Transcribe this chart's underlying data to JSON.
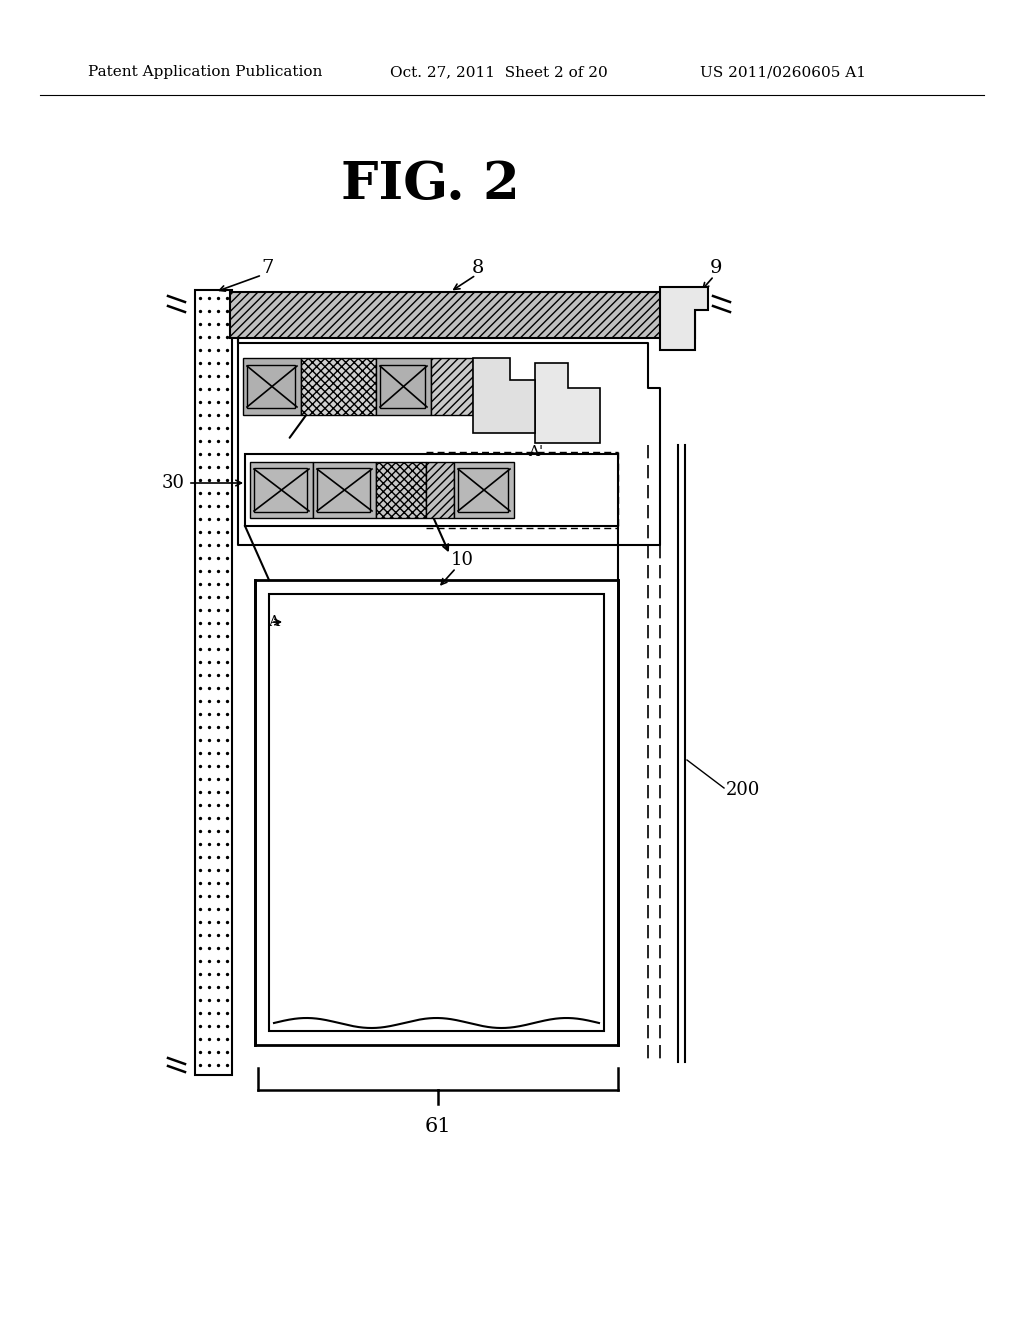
{
  "bg_color": "#ffffff",
  "title": "FIG. 2",
  "header_left": "Patent Application Publication",
  "header_mid": "Oct. 27, 2011  Sheet 2 of 20",
  "header_right": "US 2011/0260605 A1",
  "label_7": "7",
  "label_8": "8",
  "label_9": "9",
  "label_30": "30",
  "label_10": "10",
  "label_A": "A",
  "label_Aprime": "A'",
  "label_200": "200",
  "label_61": "61"
}
